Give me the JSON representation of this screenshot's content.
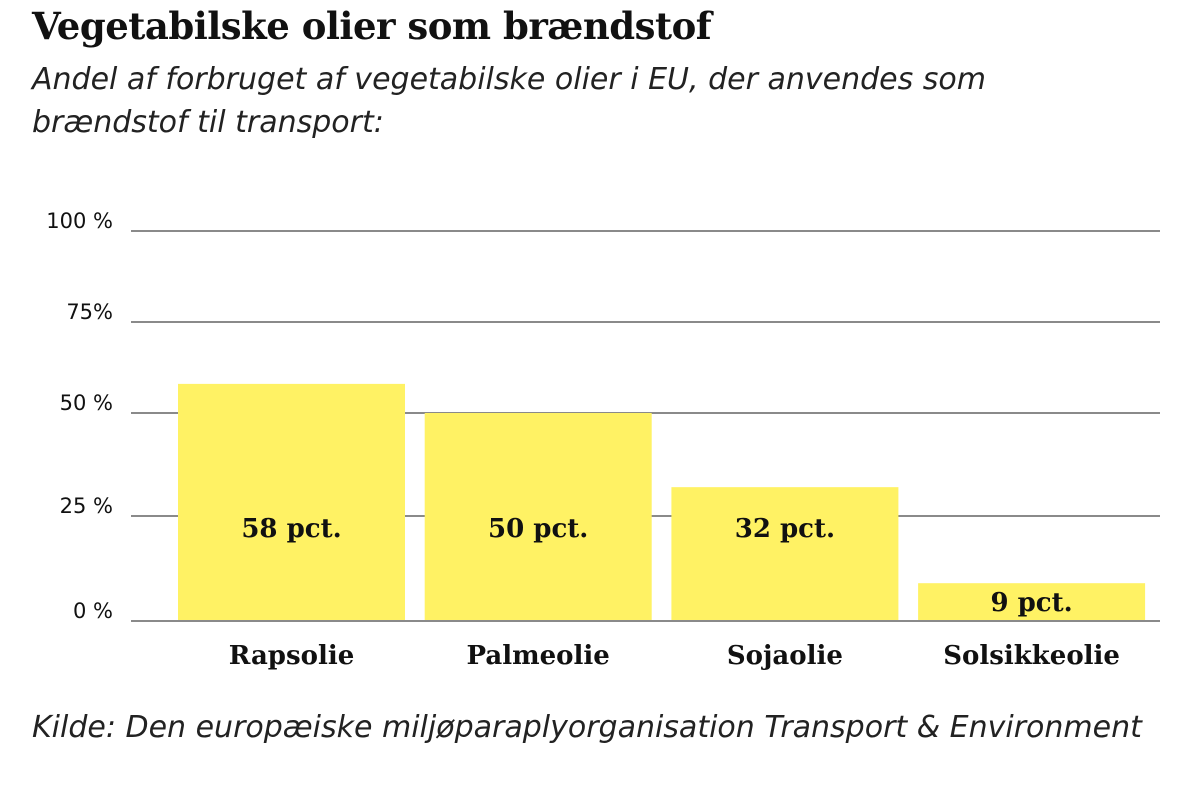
{
  "chart_data": {
    "type": "bar",
    "title": "Vegetabilske olier som brændstof",
    "subtitle": "Andel af forbruget af vegetabilske olier i EU, der anvendes som brændstof til transport:",
    "categories": [
      "Rapsolie",
      "Palmeolie",
      "Sojaolie",
      "Solsikkeolie"
    ],
    "values": [
      58,
      50,
      32,
      9
    ],
    "data_labels": [
      "58 pct.",
      "50 pct.",
      "32 pct.",
      "9 pct."
    ],
    "yticks": [
      0,
      25,
      50,
      75,
      100
    ],
    "ytick_labels": [
      "0 %",
      "25 %",
      "50 %",
      "75%",
      "100 %"
    ],
    "ylim": [
      0,
      100
    ],
    "grid": true,
    "xlabel": "",
    "ylabel": "",
    "bar_color": "#fff264",
    "grid_color": "#8a8a8a",
    "source": "Kilde: Den europæiske miljøparaplyorganisation Transport & Environment"
  }
}
